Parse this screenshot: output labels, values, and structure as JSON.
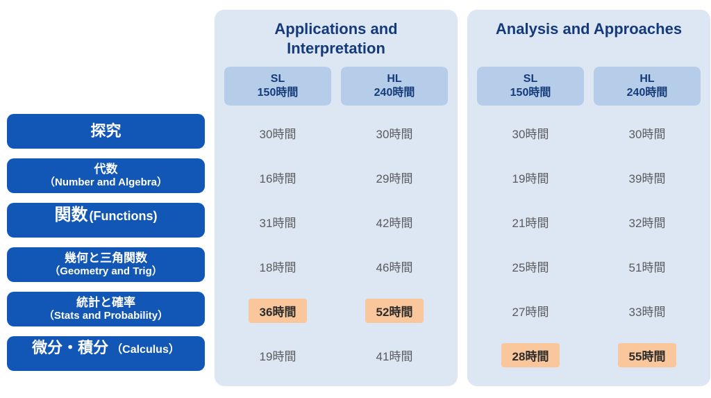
{
  "colors": {
    "page_bg": "#ffffff",
    "label_bg": "#1357b6",
    "label_text": "#ffffff",
    "panel_bg": "#dde7f4",
    "header_text": "#153a7a",
    "level_head_bg": "#b6cde9",
    "cell_text": "#5a5a5a",
    "highlight_bg": "#f9c79b",
    "highlight_text": "#2b2b2b"
  },
  "row_labels": [
    {
      "main": "探究",
      "sub": ""
    },
    {
      "main": "代数",
      "sub": "（Number and Algebra）"
    },
    {
      "main": "関数",
      "sub": "(Functions)"
    },
    {
      "main": "幾何と三角関数",
      "sub": "（Geometry and Trig）"
    },
    {
      "main": "統計と確率",
      "sub": "（Stats and Probability）"
    },
    {
      "main": "微分・積分",
      "sub": "（Calculus）"
    }
  ],
  "courses": [
    {
      "title": "Applications and Interpretation",
      "levels": [
        {
          "name": "SL",
          "hours": "150時間",
          "cells": [
            {
              "text": "30時間",
              "highlight": false
            },
            {
              "text": "16時間",
              "highlight": false
            },
            {
              "text": "31時間",
              "highlight": false
            },
            {
              "text": "18時間",
              "highlight": false
            },
            {
              "text": "36時間",
              "highlight": true
            },
            {
              "text": "19時間",
              "highlight": false
            }
          ]
        },
        {
          "name": "HL",
          "hours": "240時間",
          "cells": [
            {
              "text": "30時間",
              "highlight": false
            },
            {
              "text": "29時間",
              "highlight": false
            },
            {
              "text": "42時間",
              "highlight": false
            },
            {
              "text": "46時間",
              "highlight": false
            },
            {
              "text": "52時間",
              "highlight": true
            },
            {
              "text": "41時間",
              "highlight": false
            }
          ]
        }
      ]
    },
    {
      "title": "Analysis and Approaches",
      "levels": [
        {
          "name": "SL",
          "hours": "150時間",
          "cells": [
            {
              "text": "30時間",
              "highlight": false
            },
            {
              "text": "19時間",
              "highlight": false
            },
            {
              "text": "21時間",
              "highlight": false
            },
            {
              "text": "25時間",
              "highlight": false
            },
            {
              "text": "27時間",
              "highlight": false
            },
            {
              "text": "28時間",
              "highlight": true
            }
          ]
        },
        {
          "name": "HL",
          "hours": "240時間",
          "cells": [
            {
              "text": "30時間",
              "highlight": false
            },
            {
              "text": "39時間",
              "highlight": false
            },
            {
              "text": "32時間",
              "highlight": false
            },
            {
              "text": "51時間",
              "highlight": false
            },
            {
              "text": "33時間",
              "highlight": false
            },
            {
              "text": "55時間",
              "highlight": true
            }
          ]
        }
      ]
    }
  ]
}
